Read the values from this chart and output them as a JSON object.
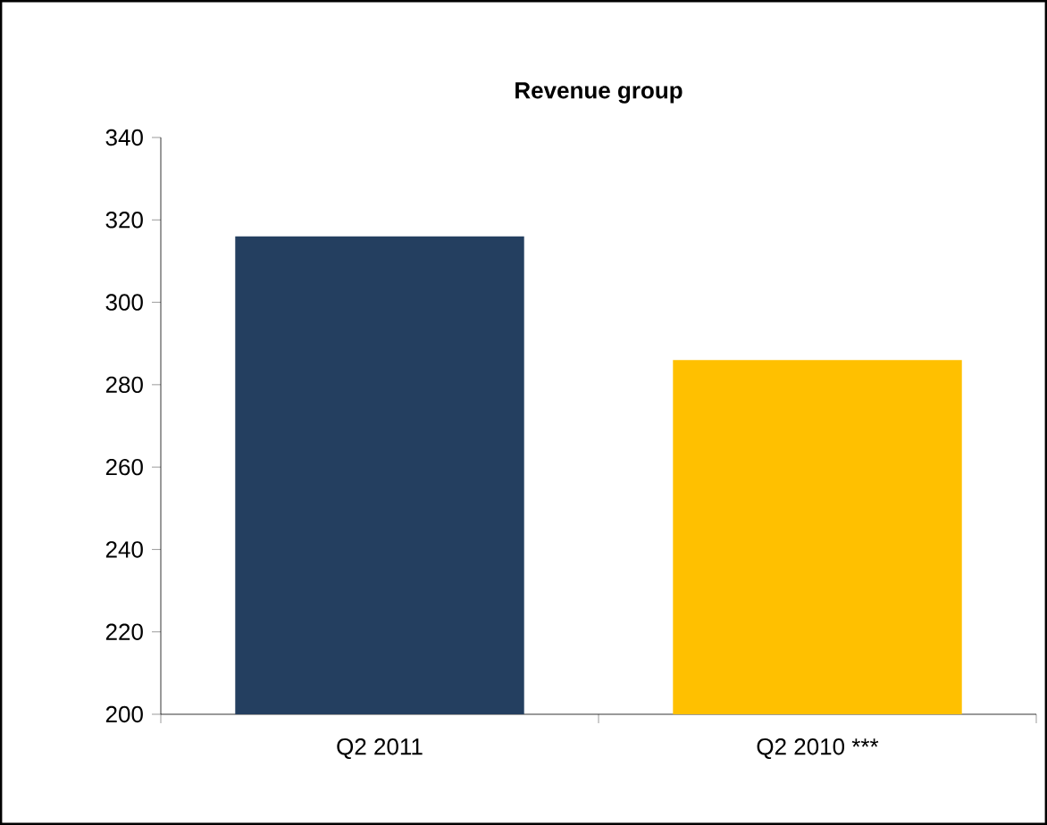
{
  "chart_data": {
    "type": "bar",
    "title": "Revenue group",
    "categories": [
      "Q2 2011",
      "Q2 2010 ***"
    ],
    "values": [
      316,
      286
    ],
    "colors": [
      "#243f60",
      "#ffc000"
    ],
    "ylim": [
      200,
      340
    ],
    "yticks": [
      200,
      220,
      240,
      260,
      280,
      300,
      320,
      340
    ],
    "grid": false
  }
}
